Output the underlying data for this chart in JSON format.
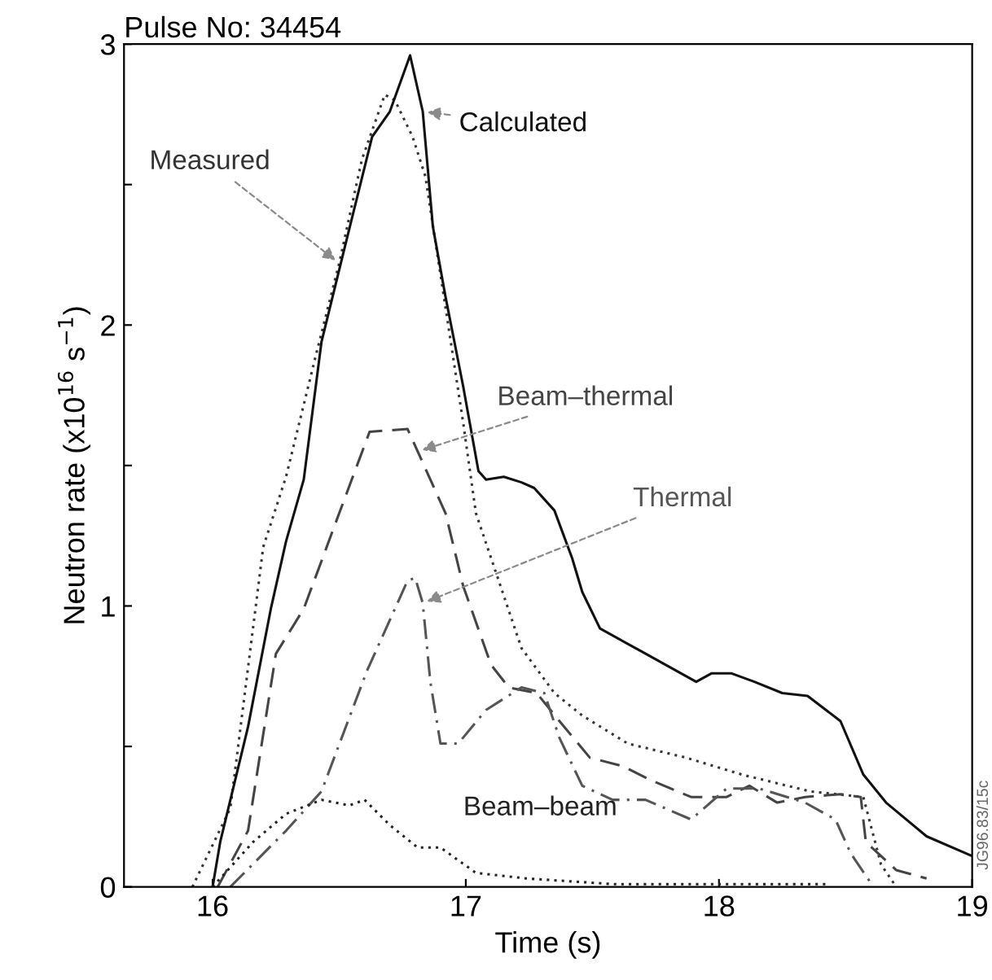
{
  "chart_data": {
    "type": "line",
    "title": "Pulse No: 34454",
    "xlabel": "Time (s)",
    "ylabel": "Neutron rate (x10$^{16}$ s$^{−1}$)",
    "xlim": [
      15.65,
      19
    ],
    "ylim": [
      0,
      3
    ],
    "xticks": [
      16,
      17,
      18,
      19
    ],
    "yticks": [
      0,
      {
        "value": 0.5,
        "label": null
      },
      1,
      {
        "value": 1.5,
        "label": null
      },
      2,
      {
        "value": 2.5,
        "label": null
      },
      3
    ],
    "grid": false,
    "legend": false,
    "annotations": [
      "JG96.83/15c"
    ],
    "series": [
      {
        "name": "Measured",
        "color": "#333333",
        "line_style": "dotted",
        "x": [
          15.92,
          16.07,
          16.2,
          16.29,
          16.41,
          16.5,
          16.59,
          16.68,
          16.72,
          16.79,
          16.84,
          16.9,
          16.99,
          17.04,
          17.13,
          17.22,
          17.35,
          17.46,
          17.64,
          17.87,
          18.09,
          18.36,
          18.57,
          18.64,
          18.7
        ],
        "values": [
          0,
          0.28,
          1.21,
          1.46,
          1.9,
          2.22,
          2.59,
          2.82,
          2.8,
          2.67,
          2.53,
          2.18,
          1.65,
          1.33,
          1.09,
          0.85,
          0.69,
          0.61,
          0.51,
          0.46,
          0.4,
          0.34,
          0.32,
          0.08,
          0
        ]
      },
      {
        "name": "Calculated",
        "color": "#111111",
        "line_style": "solid",
        "x": [
          16.0,
          16.03,
          16.14,
          16.23,
          16.29,
          16.36,
          16.43,
          16.52,
          16.63,
          16.7,
          16.78,
          16.83,
          16.87,
          16.92,
          16.99,
          17.05,
          17.08,
          17.15,
          17.22,
          17.27,
          17.35,
          17.42,
          17.46,
          17.53,
          17.69,
          17.91,
          17.97,
          18.05,
          18.14,
          18.25,
          18.35,
          18.48,
          18.57,
          18.66,
          18.82,
          19.0
        ],
        "values": [
          0,
          0.16,
          0.57,
          0.99,
          1.23,
          1.45,
          1.94,
          2.27,
          2.67,
          2.76,
          2.96,
          2.76,
          2.35,
          2.1,
          1.78,
          1.48,
          1.45,
          1.46,
          1.44,
          1.42,
          1.34,
          1.17,
          1.05,
          0.92,
          0.84,
          0.73,
          0.76,
          0.76,
          0.73,
          0.69,
          0.68,
          0.59,
          0.4,
          0.3,
          0.18,
          0.11
        ]
      },
      {
        "name": "Beam–thermal",
        "color": "#444444",
        "line_style": "dashed",
        "x": [
          16.02,
          16.14,
          16.25,
          16.36,
          16.5,
          16.62,
          16.77,
          16.81,
          16.92,
          16.99,
          17.1,
          17.17,
          17.28,
          17.37,
          17.49,
          17.62,
          17.73,
          17.89,
          18.03,
          18.12,
          18.23,
          18.34,
          18.48,
          18.56,
          18.58,
          18.7,
          18.82
        ],
        "values": [
          0,
          0.2,
          0.83,
          0.99,
          1.33,
          1.62,
          1.63,
          1.55,
          1.33,
          1.07,
          0.79,
          0.71,
          0.69,
          0.59,
          0.46,
          0.43,
          0.38,
          0.32,
          0.32,
          0.36,
          0.3,
          0.32,
          0.33,
          0.32,
          0.16,
          0.06,
          0.03
        ]
      },
      {
        "name": "Thermal",
        "color": "#555555",
        "line_style": "dashdot",
        "x": [
          16.07,
          16.29,
          16.43,
          16.61,
          16.77,
          16.8,
          16.83,
          16.86,
          16.9,
          16.97,
          17.08,
          17.22,
          17.31,
          17.37,
          17.46,
          17.58,
          17.71,
          17.89,
          18.03,
          18.16,
          18.34,
          18.46,
          18.52,
          18.61
        ],
        "values": [
          0,
          0.2,
          0.34,
          0.77,
          1.09,
          1.1,
          1.01,
          0.73,
          0.51,
          0.51,
          0.63,
          0.71,
          0.69,
          0.53,
          0.36,
          0.31,
          0.31,
          0.24,
          0.35,
          0.35,
          0.3,
          0.24,
          0.12,
          0
        ]
      },
      {
        "name": "Beam–beam",
        "color": "#222222",
        "line_style": "dotted",
        "x": [
          16.0,
          16.16,
          16.29,
          16.43,
          16.54,
          16.6,
          16.7,
          16.81,
          16.9,
          17.04,
          17.24,
          17.58,
          18.43
        ],
        "values": [
          0,
          0.16,
          0.26,
          0.31,
          0.29,
          0.31,
          0.22,
          0.14,
          0.14,
          0.05,
          0.03,
          0.01,
          0.01
        ]
      }
    ]
  }
}
